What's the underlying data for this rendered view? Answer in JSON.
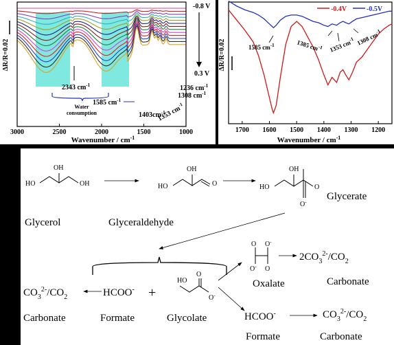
{
  "chart_data": [
    {
      "type": "line",
      "panel": "left",
      "xlabel": "Wavenumber / cm-1",
      "ylabel": "ΔR/R=0.02",
      "xlim": [
        3000,
        1000
      ],
      "x_reversed": true,
      "x_ticks": [
        3000,
        2500,
        2000,
        1500,
        1000
      ],
      "potential_top": "-0.8 V",
      "potential_bottom": "0.3 V",
      "highlight_bands": [
        [
          2750,
          2500
        ],
        [
          2000,
          1750
        ]
      ],
      "series_colors": [
        "#e040a0",
        "#d02020",
        "#8040c0",
        "#30b0c0",
        "#a0a020",
        "#202080",
        "#802020",
        "#208040",
        "#d040d0",
        "#e02020",
        "#2040d0",
        "#303030",
        "#e0a020"
      ],
      "annotations": [
        "2343 cm-1",
        "Water consumption",
        "1585 cm-1",
        "1403cm-1",
        "1353 cm-1",
        "1308 cm-1",
        "1236 cm-1"
      ]
    },
    {
      "type": "line",
      "panel": "right",
      "xlabel": "Wavenumber / cm-1",
      "ylabel": "ΔR/R=0.02",
      "xlim": [
        1750,
        1150
      ],
      "x_reversed": true,
      "x_ticks": [
        1700,
        1600,
        1500,
        1400,
        1300,
        1200
      ],
      "legend": "top-right",
      "series": [
        {
          "name": "-0.4V",
          "color": "#d01818",
          "x": [
            1750,
            1720,
            1690,
            1660,
            1640,
            1620,
            1600,
            1590,
            1585,
            1575,
            1560,
            1540,
            1520,
            1500,
            1480,
            1460,
            1440,
            1420,
            1400,
            1385,
            1370,
            1353,
            1340,
            1330,
            1320,
            1308,
            1295,
            1280,
            1260,
            1240,
            1220,
            1200,
            1180,
            1160,
            1150
          ],
          "y": [
            0.3,
            -0.5,
            -1.3,
            -2.2,
            -3.3,
            -4.8,
            -6.6,
            -7.5,
            -7.8,
            -7.2,
            -5.0,
            -2.4,
            -1.0,
            -0.6,
            -1.0,
            -1.8,
            -2.6,
            -3.6,
            -4.8,
            -5.6,
            -5.0,
            -5.4,
            -4.6,
            -4.4,
            -4.8,
            -5.2,
            -4.6,
            -3.8,
            -3.4,
            -2.8,
            -2.2,
            -1.6,
            -1.2,
            -0.9,
            -0.8
          ]
        },
        {
          "name": "-0.5V",
          "color": "#2030c0",
          "x": [
            1750,
            1720,
            1690,
            1660,
            1640,
            1620,
            1600,
            1590,
            1585,
            1575,
            1560,
            1540,
            1520,
            1500,
            1480,
            1460,
            1440,
            1420,
            1400,
            1385,
            1370,
            1353,
            1340,
            1330,
            1320,
            1308,
            1295,
            1280,
            1260,
            1240,
            1220,
            1200,
            1180,
            1160,
            1150
          ],
          "y": [
            1.0,
            0.6,
            0.3,
            0.1,
            -0.1,
            -0.4,
            -0.8,
            -1.0,
            -1.1,
            -0.9,
            -0.5,
            -0.2,
            -0.1,
            -0.1,
            -0.2,
            -0.4,
            -0.6,
            -0.7,
            -0.9,
            -1.0,
            -0.8,
            -0.9,
            -0.7,
            -0.6,
            -0.7,
            -0.8,
            -0.6,
            -0.4,
            -0.3,
            -0.2,
            -0.1,
            0.0,
            0.1,
            0.2,
            0.2
          ]
        }
      ],
      "annotations": [
        "1585 cm-1",
        "1385 cm-1",
        "1353 cm-1",
        "1308 cm-1"
      ]
    }
  ],
  "scheme": {
    "glycerol": "Glycerol",
    "glyceraldehyde": "Glyceraldehyde",
    "glycerate": "Glycerate",
    "oxalate": "Oxalate",
    "formate1": "Formate",
    "formate2": "Formate",
    "glycolate": "Glycolate",
    "carbonate_left": "Carbonate",
    "carbonate_oxalate": "Carbonate",
    "carbonate_formate": "Carbonate",
    "plus": "+"
  }
}
